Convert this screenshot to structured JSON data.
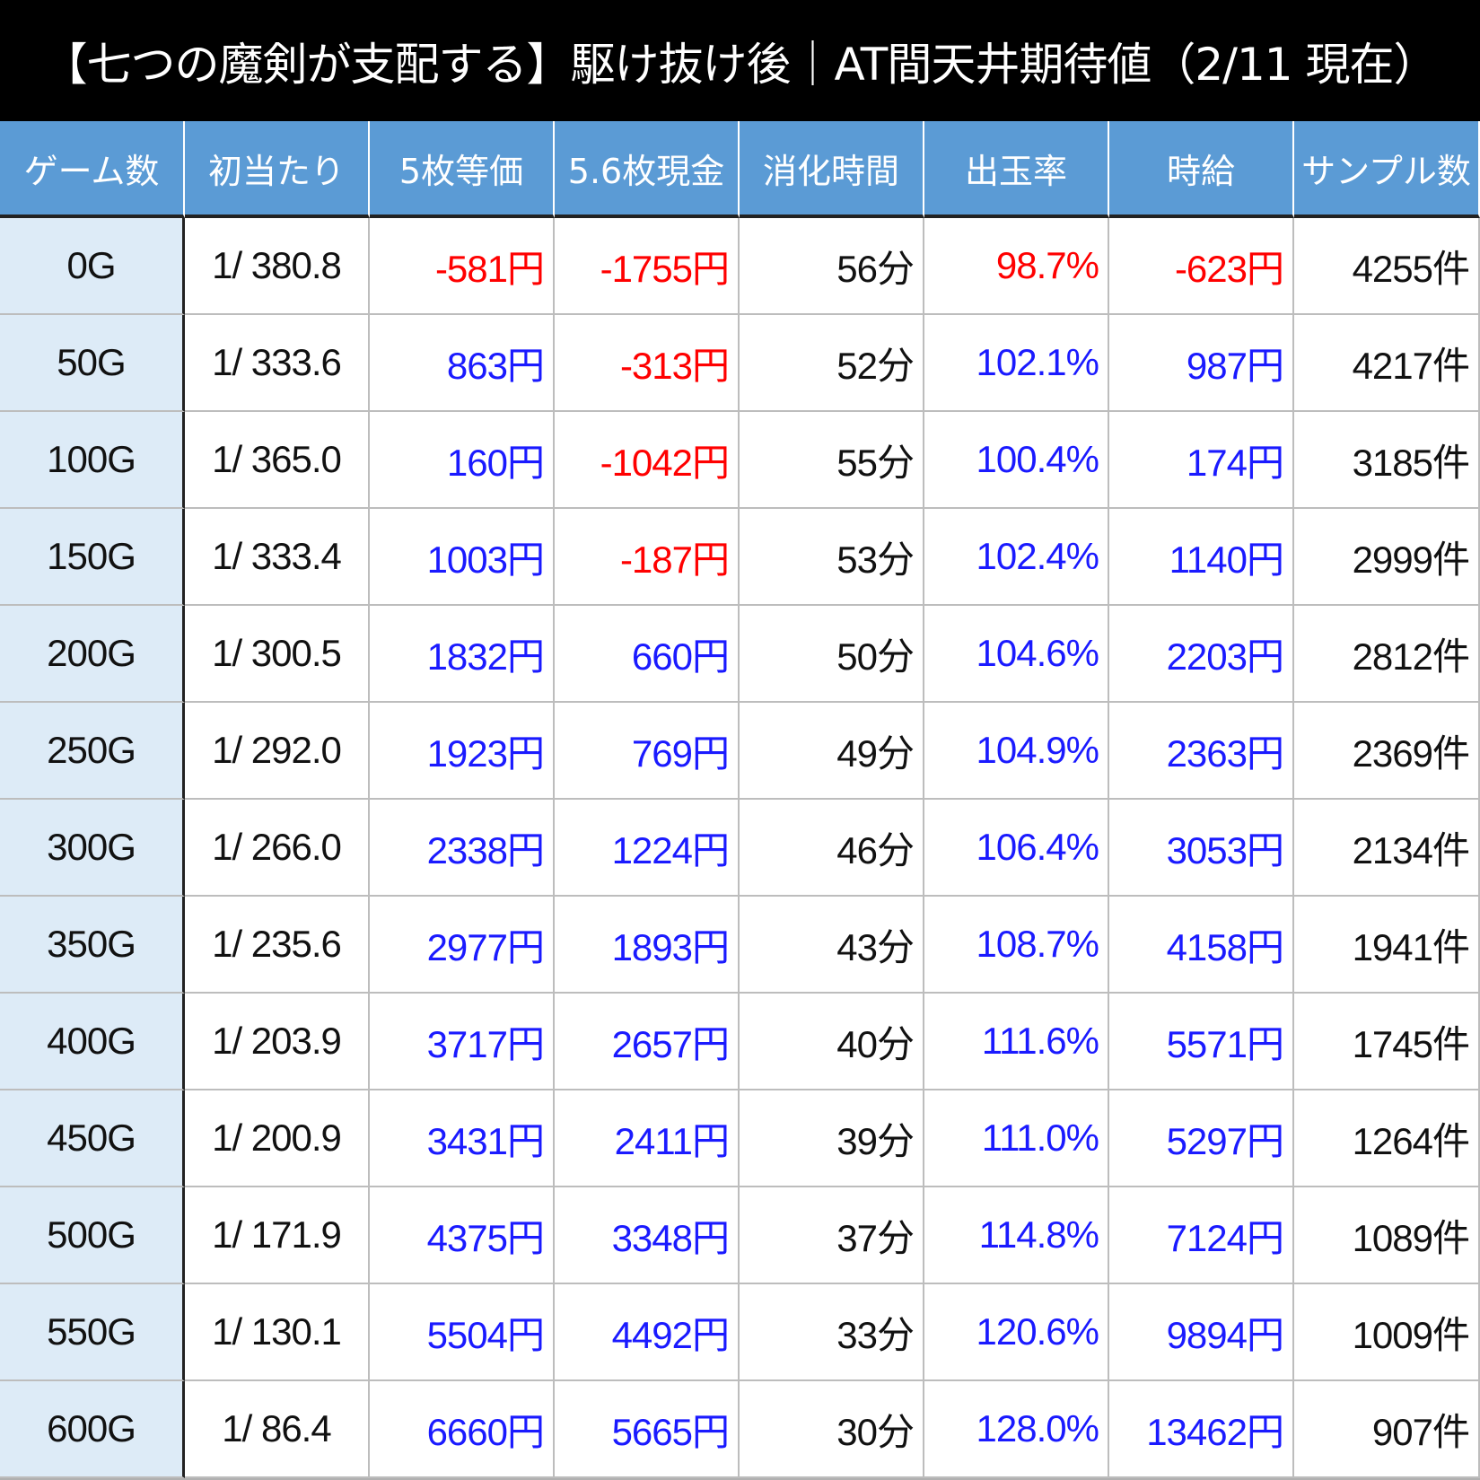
{
  "title": "【七つの魔剣が支配する】駆け抜け後｜AT間天井期待値（2/11 現在）",
  "colors": {
    "header_bg": "#5b9bd5",
    "first_col_bg": "#ddebf7",
    "negative": "#ff0000",
    "positive": "#1a1aff"
  },
  "headers": [
    "ゲーム数",
    "初当たり",
    "5枚等価",
    "5.6枚現金",
    "消化時間",
    "出玉率",
    "時給",
    "サンプル数"
  ],
  "rows": [
    [
      "0G",
      "1/ 380.8",
      "-581円",
      "-1755円",
      "56分",
      "98.7%",
      "-623円",
      "4255件"
    ],
    [
      "50G",
      "1/ 333.6",
      "863円",
      "-313円",
      "52分",
      "102.1%",
      "987円",
      "4217件"
    ],
    [
      "100G",
      "1/ 365.0",
      "160円",
      "-1042円",
      "55分",
      "100.4%",
      "174円",
      "3185件"
    ],
    [
      "150G",
      "1/ 333.4",
      "1003円",
      "-187円",
      "53分",
      "102.4%",
      "1140円",
      "2999件"
    ],
    [
      "200G",
      "1/ 300.5",
      "1832円",
      "660円",
      "50分",
      "104.6%",
      "2203円",
      "2812件"
    ],
    [
      "250G",
      "1/ 292.0",
      "1923円",
      "769円",
      "49分",
      "104.9%",
      "2363円",
      "2369件"
    ],
    [
      "300G",
      "1/ 266.0",
      "2338円",
      "1224円",
      "46分",
      "106.4%",
      "3053円",
      "2134件"
    ],
    [
      "350G",
      "1/ 235.6",
      "2977円",
      "1893円",
      "43分",
      "108.7%",
      "4158円",
      "1941件"
    ],
    [
      "400G",
      "1/ 203.9",
      "3717円",
      "2657円",
      "40分",
      "111.6%",
      "5571円",
      "1745件"
    ],
    [
      "450G",
      "1/ 200.9",
      "3431円",
      "2411円",
      "39分",
      "111.0%",
      "5297円",
      "1264件"
    ],
    [
      "500G",
      "1/ 171.9",
      "4375円",
      "3348円",
      "37分",
      "114.8%",
      "7124円",
      "1089件"
    ],
    [
      "550G",
      "1/ 130.1",
      "5504円",
      "4492円",
      "33分",
      "120.6%",
      "9894円",
      "1009件"
    ],
    [
      "600G",
      "1/ 86.4",
      "6660円",
      "5665円",
      "30分",
      "128.0%",
      "13462円",
      "907件"
    ]
  ]
}
